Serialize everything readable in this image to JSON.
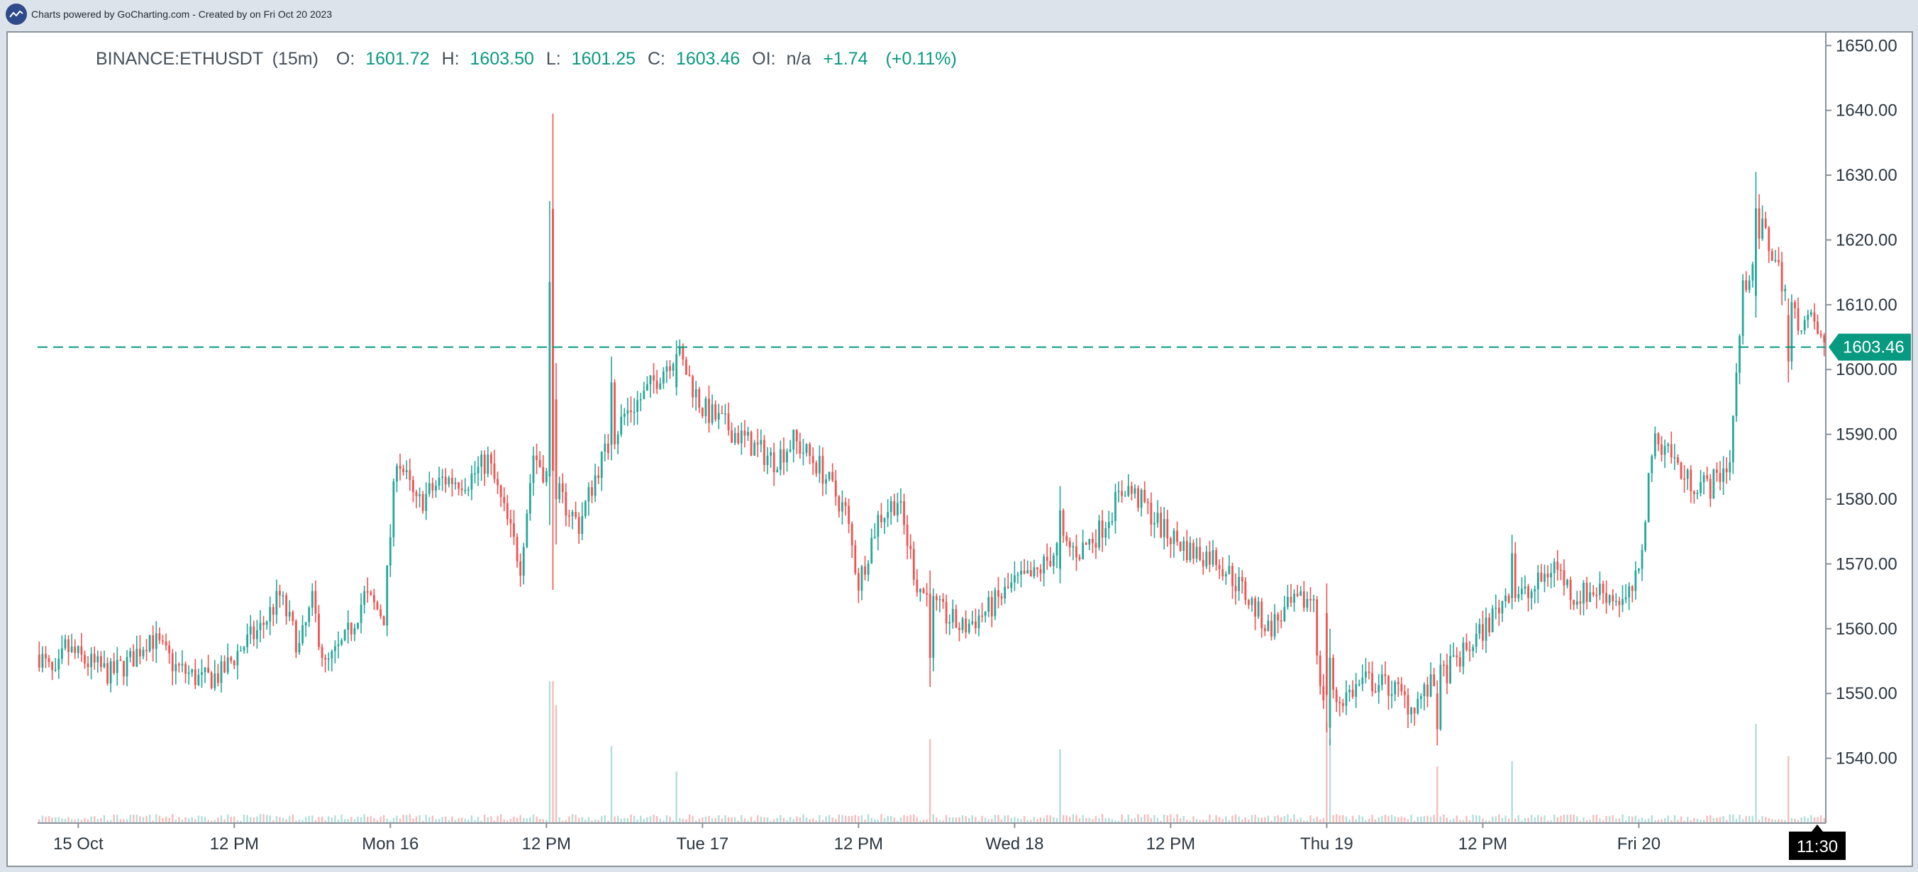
{
  "header": {
    "credit": "Charts powered by GoCharting.com - Created by  on Fri Oct 20 2023",
    "logo_icon": "gocharting-logo-icon"
  },
  "colors": {
    "up": "#26a69a",
    "down": "#ef5350",
    "volume_up": "#b2dfdb",
    "volume_down": "#f8bcbc",
    "grid_axis": "#8a939c",
    "last_price": "#089981"
  },
  "chart_data": {
    "type": "candlestick",
    "symbol": "BINANCE:ETHUSDT",
    "interval": "(15m)",
    "ohlc": {
      "o_label": "O:",
      "o": "1601.72",
      "h_label": "H:",
      "h": "1603.50",
      "l_label": "L:",
      "l": "1601.25",
      "c_label": "C:",
      "c": "1603.46",
      "oi_label": "OI:",
      "oi": "n/a",
      "change": "+1.74",
      "change_pct": "(+0.11%)"
    },
    "last_price": 1603.46,
    "last_price_label": "1603.46",
    "ylim": [
      1530,
      1652
    ],
    "y_ticks": [
      {
        "value": 1540,
        "label": "1540.00"
      },
      {
        "value": 1550,
        "label": "1550.00"
      },
      {
        "value": 1560,
        "label": "1560.00"
      },
      {
        "value": 1570,
        "label": "1570.00"
      },
      {
        "value": 1580,
        "label": "1580.00"
      },
      {
        "value": 1590,
        "label": "1590.00"
      },
      {
        "value": 1600,
        "label": "1600.00"
      },
      {
        "value": 1610,
        "label": "1610.00"
      },
      {
        "value": 1620,
        "label": "1620.00"
      },
      {
        "value": 1630,
        "label": "1630.00"
      },
      {
        "value": 1640,
        "label": "1640.00"
      },
      {
        "value": 1650,
        "label": "1650.00"
      }
    ],
    "x_ticks": [
      {
        "bar": 12,
        "label": "15 Oct"
      },
      {
        "bar": 60,
        "label": "12 PM"
      },
      {
        "bar": 108,
        "label": "Mon 16"
      },
      {
        "bar": 156,
        "label": "12 PM"
      },
      {
        "bar": 204,
        "label": "Tue 17"
      },
      {
        "bar": 252,
        "label": "12 PM"
      },
      {
        "bar": 300,
        "label": "Wed 18"
      },
      {
        "bar": 348,
        "label": "12 PM"
      },
      {
        "bar": 396,
        "label": "Thu 19"
      },
      {
        "bar": 444,
        "label": "12 PM"
      },
      {
        "bar": 492,
        "label": "Fri 20"
      }
    ],
    "time_cursor_label": "11:30",
    "total_bars": 550,
    "keypoints": [
      [
        0,
        1556
      ],
      [
        5,
        1552
      ],
      [
        8,
        1557
      ],
      [
        14,
        1555
      ],
      [
        22,
        1553
      ],
      [
        28,
        1555
      ],
      [
        34,
        1559
      ],
      [
        42,
        1554
      ],
      [
        50,
        1552
      ],
      [
        56,
        1553
      ],
      [
        62,
        1557
      ],
      [
        68,
        1560
      ],
      [
        74,
        1565
      ],
      [
        80,
        1557
      ],
      [
        84,
        1564
      ],
      [
        88,
        1554
      ],
      [
        94,
        1558
      ],
      [
        100,
        1565
      ],
      [
        106,
        1562
      ],
      [
        110,
        1587
      ],
      [
        116,
        1579
      ],
      [
        124,
        1583
      ],
      [
        132,
        1583
      ],
      [
        138,
        1586
      ],
      [
        148,
        1570
      ],
      [
        152,
        1587
      ],
      [
        158,
        1582
      ],
      [
        166,
        1576
      ],
      [
        172,
        1585
      ],
      [
        180,
        1593
      ],
      [
        186,
        1596
      ],
      [
        196,
        1603
      ],
      [
        204,
        1594
      ],
      [
        212,
        1591
      ],
      [
        220,
        1588
      ],
      [
        226,
        1586
      ],
      [
        232,
        1589
      ],
      [
        240,
        1585
      ],
      [
        248,
        1578
      ],
      [
        252,
        1567
      ],
      [
        258,
        1577
      ],
      [
        264,
        1580
      ],
      [
        270,
        1567
      ],
      [
        276,
        1563
      ],
      [
        284,
        1560
      ],
      [
        292,
        1563
      ],
      [
        300,
        1567
      ],
      [
        306,
        1568
      ],
      [
        314,
        1573
      ],
      [
        320,
        1572
      ],
      [
        326,
        1575
      ],
      [
        334,
        1582
      ],
      [
        340,
        1579
      ],
      [
        346,
        1575
      ],
      [
        354,
        1572
      ],
      [
        362,
        1571
      ],
      [
        370,
        1566
      ],
      [
        378,
        1560
      ],
      [
        384,
        1563
      ],
      [
        392,
        1565
      ],
      [
        394,
        1550
      ],
      [
        400,
        1549
      ],
      [
        408,
        1552
      ],
      [
        416,
        1551
      ],
      [
        422,
        1548
      ],
      [
        430,
        1552
      ],
      [
        438,
        1556
      ],
      [
        446,
        1561
      ],
      [
        452,
        1566
      ],
      [
        458,
        1565
      ],
      [
        466,
        1570
      ],
      [
        472,
        1565
      ],
      [
        480,
        1566
      ],
      [
        488,
        1564
      ],
      [
        492,
        1568
      ],
      [
        496,
        1588
      ],
      [
        500,
        1589
      ],
      [
        506,
        1583
      ],
      [
        514,
        1582
      ],
      [
        520,
        1586
      ],
      [
        524,
        1612
      ],
      [
        530,
        1622
      ],
      [
        536,
        1614
      ],
      [
        540,
        1608
      ],
      [
        546,
        1607
      ],
      [
        550,
        1602
      ]
    ],
    "spikes": [
      {
        "bar": 157,
        "high": 1626,
        "low": 1576,
        "bull": true
      },
      {
        "bar": 158,
        "high": 1639.5,
        "low": 1566,
        "bull": false
      },
      {
        "bar": 159,
        "high": 1601,
        "low": 1573,
        "bull": false
      },
      {
        "bar": 176,
        "high": 1602,
        "low": 1586,
        "bull": true
      },
      {
        "bar": 196,
        "high": 1604.5,
        "low": 1596,
        "bull": true
      },
      {
        "bar": 274,
        "high": 1569,
        "low": 1551,
        "bull": false
      },
      {
        "bar": 314,
        "high": 1582,
        "low": 1567,
        "bull": true
      },
      {
        "bar": 396,
        "high": 1567,
        "low": 1544,
        "bull": false
      },
      {
        "bar": 397,
        "high": 1560,
        "low": 1542,
        "bull": true
      },
      {
        "bar": 430,
        "high": 1552,
        "low": 1542,
        "bull": false
      },
      {
        "bar": 453,
        "high": 1574.5,
        "low": 1563,
        "bull": true
      },
      {
        "bar": 528,
        "high": 1630.5,
        "low": 1608,
        "bull": true
      },
      {
        "bar": 538,
        "high": 1611,
        "low": 1598,
        "bull": false
      }
    ]
  }
}
